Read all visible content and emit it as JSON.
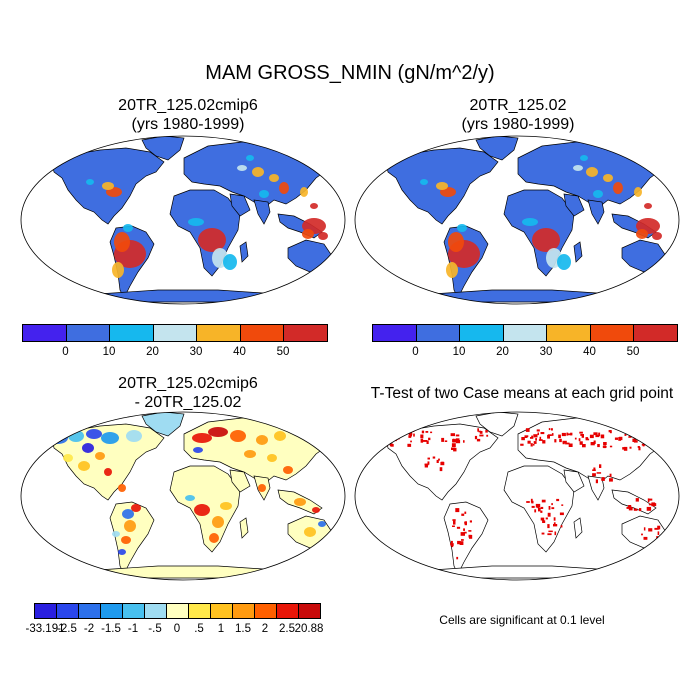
{
  "figure": {
    "title": "MAM GROSS_NMIN (gN/m^2/y)",
    "panels": [
      {
        "id": "p1",
        "title_line1": "20TR_125.02cmip6",
        "title_line2": "(yrs 1980-1999)"
      },
      {
        "id": "p2",
        "title_line1": "20TR_125.02",
        "title_line2": "(yrs 1980-1999)"
      },
      {
        "id": "p3",
        "title_line1": "20TR_125.02cmip6",
        "title_line2": "- 20TR_125.02"
      },
      {
        "id": "p4",
        "title_line1": "T-Test of two Case means at each grid point",
        "title_line2": ""
      }
    ],
    "significance_note": "Cells are significant at 0.1 level"
  },
  "colorbars": {
    "abs": {
      "colors": [
        "#4422ee",
        "#3f6ee0",
        "#16b8ee",
        "#c4e4ee",
        "#f7b428",
        "#f04a0c",
        "#d22a28"
      ],
      "labels": [
        "0",
        "10",
        "20",
        "30",
        "40",
        "50"
      ]
    },
    "diff": {
      "colors": [
        "#2a1fe0",
        "#2a47ec",
        "#2c70ea",
        "#1f9aee",
        "#48c0ef",
        "#9fdcf2",
        "#ffffc0",
        "#ffe84a",
        "#ffc220",
        "#ff9b10",
        "#ff6000",
        "#e81608",
        "#c80a0a"
      ],
      "labels": [
        "-33.191",
        "-2.5",
        "-2",
        "-1.5",
        "-1",
        "-.5",
        "0",
        ".5",
        "1",
        "1.5",
        "2",
        "2.5",
        "20.88"
      ]
    }
  },
  "colors": {
    "ocean": "#ffffff",
    "coastline": "#000000",
    "land_abs_base": "#3f6ee0",
    "land_diff_base": "#ffffc0",
    "significance": "#e60000"
  }
}
